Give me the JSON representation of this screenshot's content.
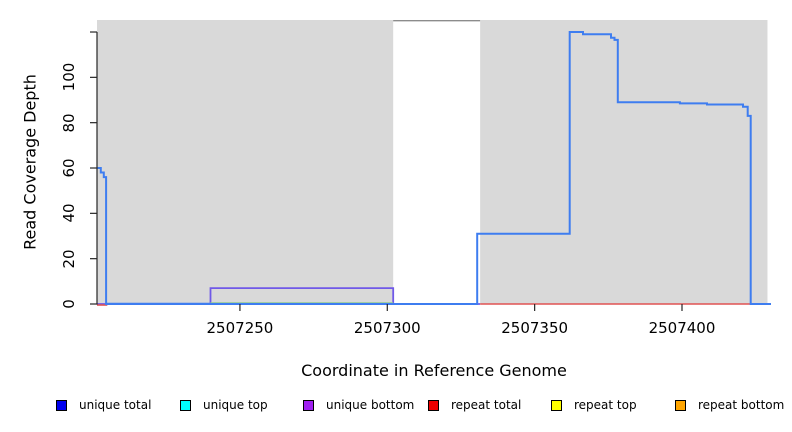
{
  "chart_data": {
    "type": "line",
    "subtype": "step-coverage-plot",
    "title": "",
    "xlabel": "Coordinate in Reference Genome",
    "ylabel": "Read Coverage Depth",
    "x_range": [
      2507201.5,
      2507430.2
    ],
    "y_range": [
      0,
      125.3
    ],
    "x_ticks": [
      2507250,
      2507300,
      2507350,
      2507400
    ],
    "y_ticks": [
      0,
      20,
      40,
      60,
      80,
      100,
      120
    ],
    "y_tick_labels": [
      "0",
      "20",
      "40",
      "60",
      "80",
      "100",
      ""
    ],
    "grid": false,
    "colors": {
      "unique_region_fill": "#d9d9d9",
      "gap_top_border": "#8c8c8c",
      "axis": "#262626",
      "coverage_line": "#3e7df0",
      "unique_bottom_line": "#7059e8",
      "overlap_zero_line": "#8fcb8f",
      "repeat_zero_line": "#e05252"
    },
    "unique_regions": [
      [
        2507201.5,
        2507302
      ],
      [
        2507331.5,
        2507429
      ]
    ],
    "repeat_gap": [
      2507302,
      2507331.5
    ],
    "series": [
      {
        "name": "unique total coverage",
        "color": "#3e7df0",
        "width": 2,
        "step_points": [
          [
            2507201.5,
            60
          ],
          [
            2507202.8,
            58
          ],
          [
            2507203.8,
            56
          ],
          [
            2507204.6,
            0
          ],
          [
            2507330.5,
            31
          ],
          [
            2507361.9,
            120
          ],
          [
            2507366.4,
            119
          ],
          [
            2507375.9,
            117.5
          ],
          [
            2507377.1,
            116.5
          ],
          [
            2507378.2,
            89
          ],
          [
            2507399.3,
            88.5
          ],
          [
            2507408.5,
            88
          ],
          [
            2507420.7,
            87
          ],
          [
            2507422.3,
            83
          ],
          [
            2507423.3,
            0
          ],
          [
            2507430.2,
            0
          ]
        ]
      },
      {
        "name": "unique bottom coverage",
        "color": "#7059e8",
        "width": 1.8,
        "step_points": [
          [
            2507201.5,
            0
          ],
          [
            2507240,
            7
          ],
          [
            2507302,
            0
          ],
          [
            2507331.5,
            0
          ]
        ]
      }
    ],
    "baseline_segments": [
      {
        "name": "repeat-total-zero-left",
        "color": "#e05252",
        "from": 2507201.5,
        "to": 2507205,
        "dy": 1
      },
      {
        "name": "unique-total-zero-left",
        "color": "#3e7df0",
        "from": 2507204.6,
        "to": 2507240,
        "dy": -0.5
      },
      {
        "name": "top-lines-overlap-zero",
        "color": "#8fcb8f",
        "from": 2507240,
        "to": 2507302,
        "dy": -1
      },
      {
        "name": "repeat-total-zero-main",
        "color": "#e05252",
        "from": 2507331.5,
        "to": 2507423.3,
        "dy": 0
      },
      {
        "name": "unique-total-zero-tail",
        "color": "#3e7df0",
        "from": 2507423.3,
        "to": 2507430.2,
        "dy": 0
      }
    ],
    "legend": {
      "position": "bottom",
      "items": [
        {
          "label": "unique total",
          "color": "#0000ee"
        },
        {
          "label": "unique top",
          "color": "#00ffff"
        },
        {
          "label": "unique bottom",
          "color": "#a020f0"
        },
        {
          "label": "repeat total",
          "color": "#ee0000"
        },
        {
          "label": "repeat top",
          "color": "#ffff00"
        },
        {
          "label": "repeat bottom",
          "color": "#ffa500"
        }
      ]
    }
  }
}
